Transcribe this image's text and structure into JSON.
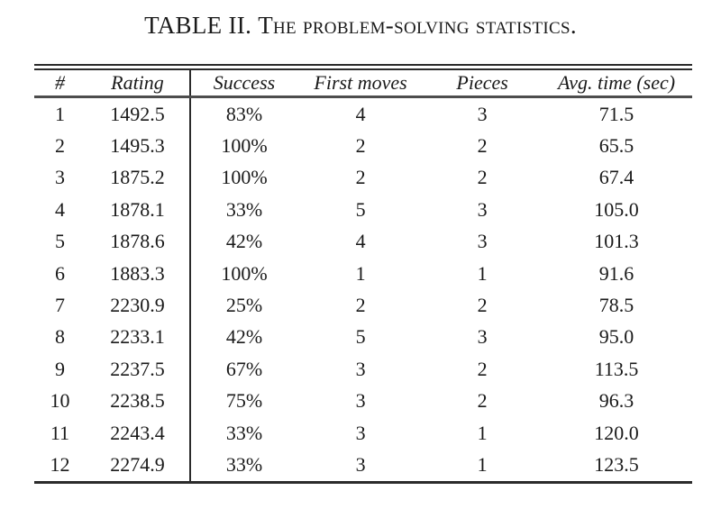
{
  "title": {
    "label": "TABLE II.",
    "text": "The problem-solving statistics."
  },
  "table": {
    "columns": [
      "#",
      "Rating",
      "Success",
      "First moves",
      "Pieces",
      "Avg. time (sec)"
    ],
    "rows": [
      [
        "1",
        "1492.5",
        "83%",
        "4",
        "3",
        "71.5"
      ],
      [
        "2",
        "1495.3",
        "100%",
        "2",
        "2",
        "65.5"
      ],
      [
        "3",
        "1875.2",
        "100%",
        "2",
        "2",
        "67.4"
      ],
      [
        "4",
        "1878.1",
        "33%",
        "5",
        "3",
        "105.0"
      ],
      [
        "5",
        "1878.6",
        "42%",
        "4",
        "3",
        "101.3"
      ],
      [
        "6",
        "1883.3",
        "100%",
        "1",
        "1",
        "91.6"
      ],
      [
        "7",
        "2230.9",
        "25%",
        "2",
        "2",
        "78.5"
      ],
      [
        "8",
        "2233.1",
        "42%",
        "5",
        "3",
        "95.0"
      ],
      [
        "9",
        "2237.5",
        "67%",
        "3",
        "2",
        "113.5"
      ],
      [
        "10",
        "2238.5",
        "75%",
        "3",
        "2",
        "96.3"
      ],
      [
        "11",
        "2243.4",
        "33%",
        "3",
        "1",
        "120.0"
      ],
      [
        "12",
        "2274.9",
        "33%",
        "3",
        "1",
        "123.5"
      ]
    ]
  },
  "colors": {
    "text": "#1a1a1a",
    "rule": "#2b2b2b",
    "header_rule": "#4d4d4d",
    "background": "#ffffff"
  }
}
